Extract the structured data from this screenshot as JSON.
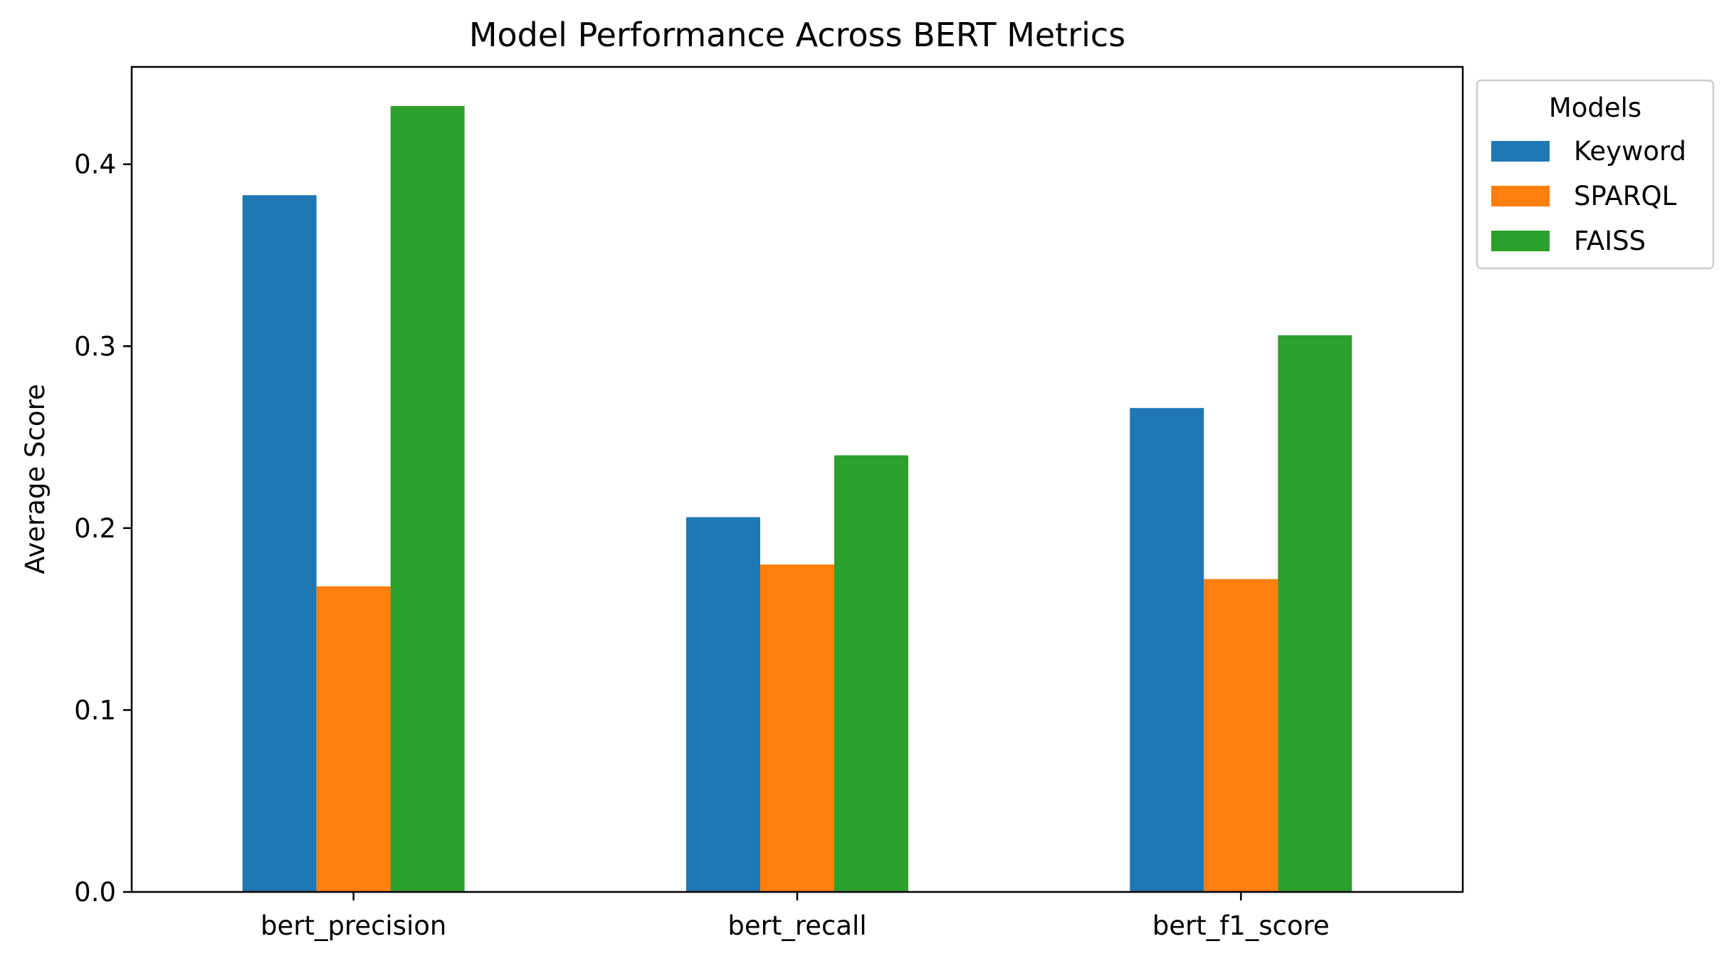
{
  "chart_data": {
    "type": "bar",
    "title": "Model Performance Across BERT Metrics",
    "xlabel": "",
    "ylabel": "Average Score",
    "categories": [
      "bert_precision",
      "bert_recall",
      "bert_f1_score"
    ],
    "series": [
      {
        "name": "Keyword",
        "color": "#1f77b4",
        "values": [
          0.383,
          0.206,
          0.266
        ]
      },
      {
        "name": "SPARQL",
        "color": "#ff7f0e",
        "values": [
          0.168,
          0.18,
          0.172
        ]
      },
      {
        "name": "FAISS",
        "color": "#2ca02c",
        "values": [
          0.432,
          0.24,
          0.306
        ]
      }
    ],
    "ylim": [
      0,
      0.4535
    ],
    "yticks": [
      0.0,
      0.1,
      0.2,
      0.3,
      0.4
    ],
    "ytick_labels": [
      "0.0",
      "0.1",
      "0.2",
      "0.3",
      "0.4"
    ],
    "grid": false,
    "legend": {
      "title": "Models",
      "placement": "outside-top-right"
    }
  }
}
